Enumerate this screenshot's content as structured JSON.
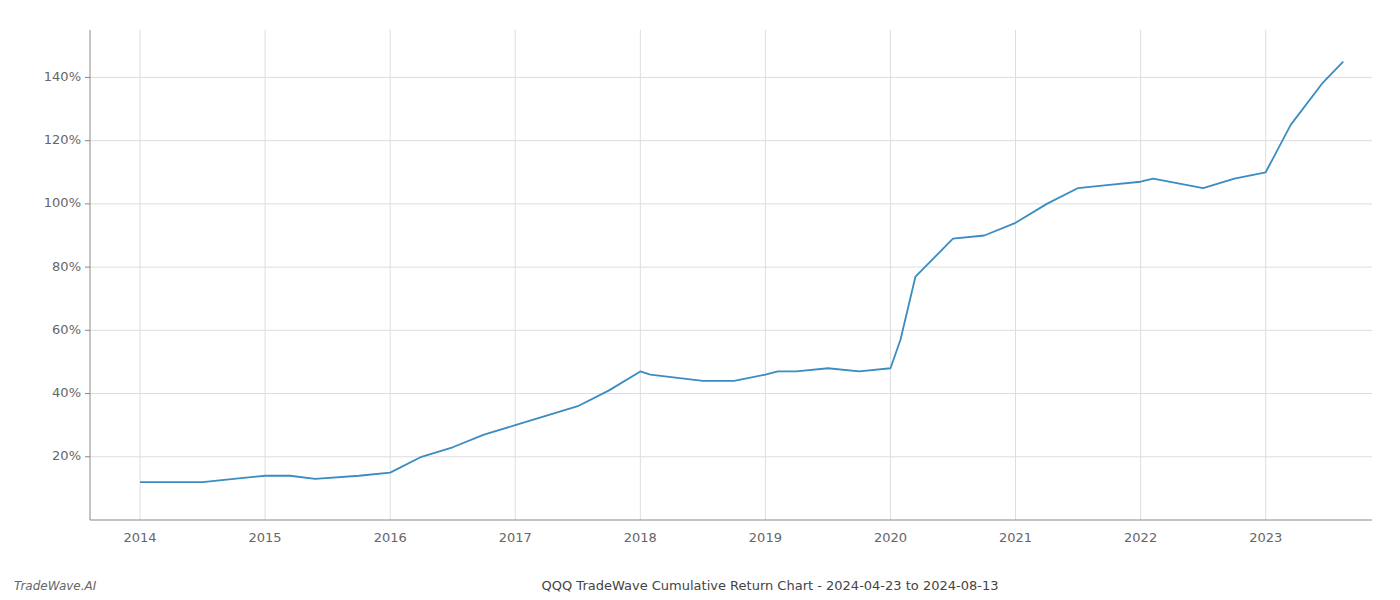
{
  "chart_data": {
    "type": "line",
    "title": "QQQ TradeWave Cumulative Return Chart - 2024-04-23 to 2024-08-13",
    "annotations": [
      "TradeWave.AI"
    ],
    "color": "#3a8cc1",
    "x": [
      2014.0,
      2014.25,
      2014.5,
      2014.75,
      2015.0,
      2015.2,
      2015.4,
      2015.75,
      2016.0,
      2016.25,
      2016.5,
      2016.75,
      2017.0,
      2017.25,
      2017.5,
      2017.75,
      2018.0,
      2018.08,
      2018.5,
      2018.75,
      2019.0,
      2019.1,
      2019.25,
      2019.5,
      2019.75,
      2020.0,
      2020.08,
      2020.2,
      2020.5,
      2020.75,
      2021.0,
      2021.25,
      2021.5,
      2021.75,
      2022.0,
      2022.1,
      2022.5,
      2022.75,
      2023.0,
      2023.2,
      2023.45,
      2023.62
    ],
    "values": [
      12,
      12,
      12,
      13,
      14,
      14,
      13,
      14,
      15,
      20,
      23,
      27,
      30,
      33,
      36,
      41,
      47,
      46,
      44,
      44,
      46,
      47,
      47,
      48,
      47,
      48,
      57,
      77,
      89,
      90,
      94,
      100,
      105,
      106,
      107,
      108,
      105,
      108,
      110,
      125,
      138,
      145
    ],
    "xlim": [
      2013.6,
      2023.85
    ],
    "ylim": [
      0,
      155
    ],
    "xticks": [
      2014,
      2015,
      2016,
      2017,
      2018,
      2019,
      2020,
      2021,
      2022,
      2023
    ],
    "yticks": [
      {
        "value": 20,
        "label": "20%"
      },
      {
        "value": 40,
        "label": "40%"
      },
      {
        "value": 60,
        "label": "60%"
      },
      {
        "value": 80,
        "label": "80%"
      },
      {
        "value": 100,
        "label": "100%"
      },
      {
        "value": 120,
        "label": "120%"
      },
      {
        "value": 140,
        "label": "140%"
      }
    ],
    "grid": true
  }
}
